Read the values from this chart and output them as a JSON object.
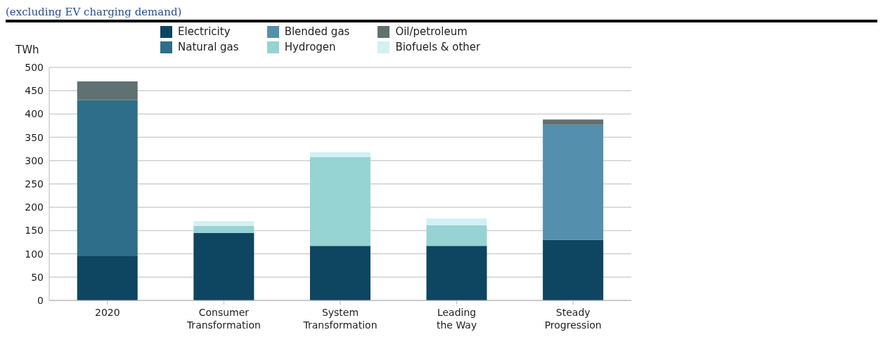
{
  "chart_data": {
    "type": "bar",
    "subtitle": "(excluding EV charging demand)",
    "ylabel": "TWh",
    "categories": [
      "2020",
      "Consumer Transformation",
      "System Transformation",
      "Leading the Way",
      "Steady Progression"
    ],
    "series": [
      {
        "name": "Electricity",
        "color": "#0e4560",
        "values": [
          95,
          145,
          117,
          117,
          130
        ]
      },
      {
        "name": "Natural gas",
        "color": "#2e6e8a",
        "values": [
          335,
          null,
          null,
          null,
          null
        ]
      },
      {
        "name": "Blended gas",
        "color": "#548fad",
        "values": [
          null,
          null,
          null,
          null,
          247
        ]
      },
      {
        "name": "Hydrogen",
        "color": "#96d3d3",
        "values": [
          null,
          15,
          191,
          44,
          null
        ]
      },
      {
        "name": "Oil/petroleum",
        "color": "#5f7171",
        "values": [
          40,
          null,
          null,
          null,
          11
        ]
      },
      {
        "name": "Biofuels & other",
        "color": "#d2f1f5",
        "values": [
          null,
          10,
          10,
          15,
          null
        ]
      }
    ],
    "stacked": true,
    "ylim": [
      0,
      500
    ],
    "yticks": [
      0,
      50,
      100,
      150,
      200,
      250,
      300,
      350,
      400,
      450,
      500
    ],
    "grid": "y",
    "legend": "top"
  }
}
